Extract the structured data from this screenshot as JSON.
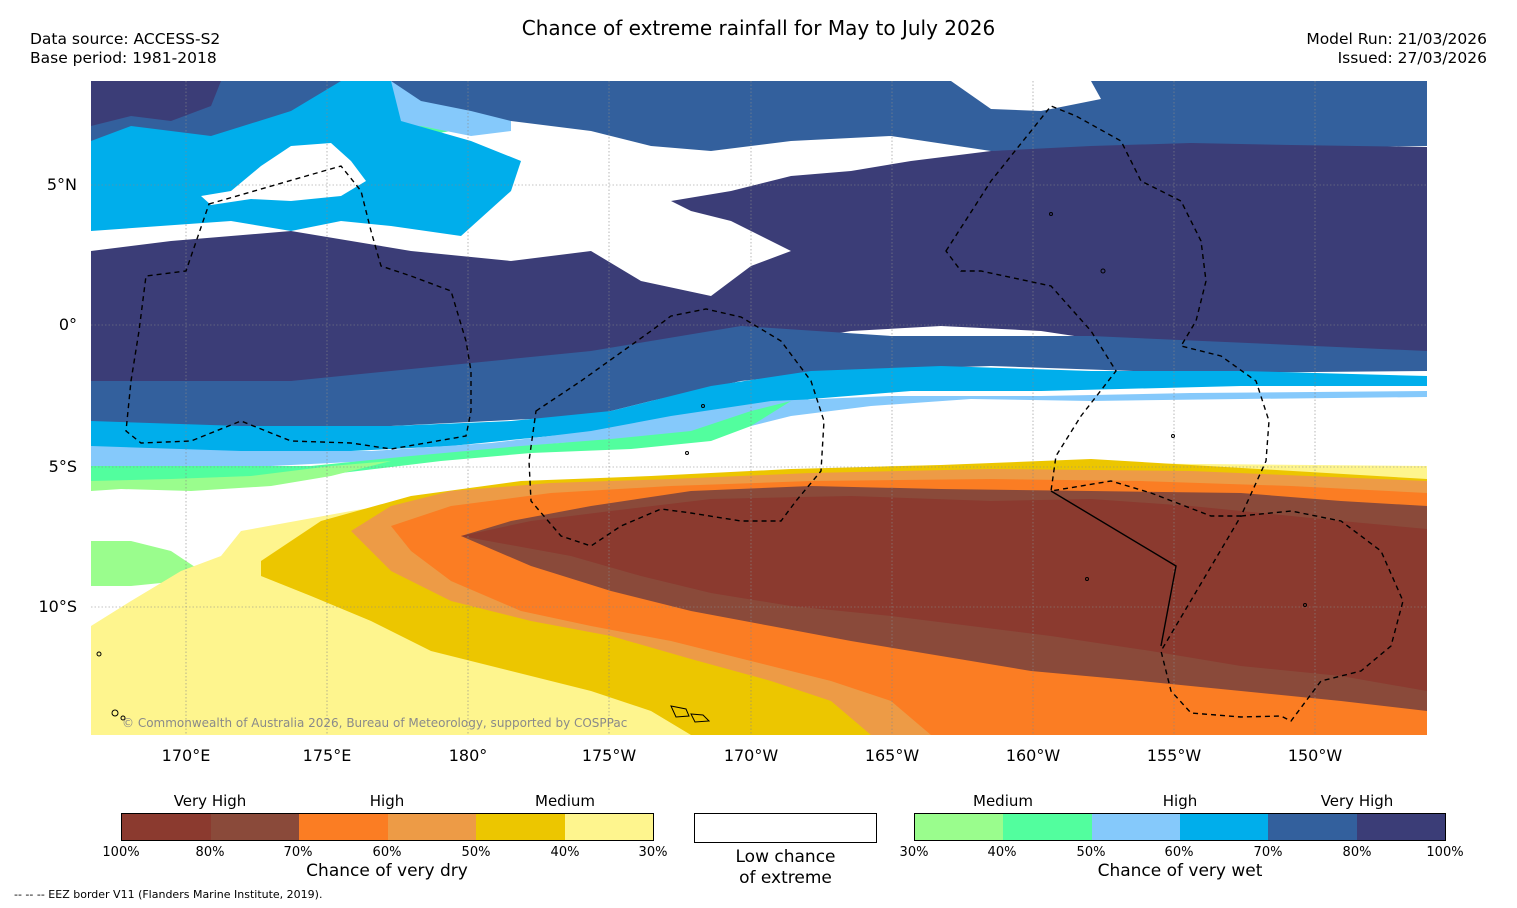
{
  "header": {
    "title": "Chance of extreme rainfall for May to July 2026",
    "data_source": "Data source: ACCESS-S2",
    "base_period": "Base period: 1981-2018",
    "model_run": "Model Run: 21/03/2026",
    "issued": "Issued: 27/03/2026"
  },
  "map": {
    "lat_labels": [
      "5°N",
      "0°",
      "5°S",
      "10°S"
    ],
    "lon_labels": [
      "170°E",
      "175°E",
      "180°",
      "175°W",
      "170°W",
      "165°W",
      "160°W",
      "155°W",
      "150°W"
    ],
    "copyright": "© Commonwealth of Australia 2026, Bureau of Meteorology, supported by COSPPac"
  },
  "legend": {
    "dry": {
      "title": "Chance of very dry",
      "categories": [
        "Very High",
        "High",
        "Medium"
      ],
      "ticks": [
        "100%",
        "80%",
        "70%",
        "60%",
        "50%",
        "40%",
        "30%"
      ],
      "colors": [
        "#8b3a2f",
        "#8a4a3a",
        "#fb7d23",
        "#ed9b46",
        "#ecc600",
        "#fef58e"
      ]
    },
    "neutral": {
      "label_line1": "Low chance",
      "label_line2": "of extreme",
      "color": "#ffffff"
    },
    "wet": {
      "title": "Chance of very wet",
      "categories": [
        "Medium",
        "High",
        "Very High"
      ],
      "ticks": [
        "30%",
        "40%",
        "50%",
        "60%",
        "70%",
        "80%",
        "100%"
      ],
      "colors": [
        "#9afd8d",
        "#52fe9e",
        "#85c9fb",
        "#00aeeb",
        "#33609d",
        "#3b3d77"
      ]
    }
  },
  "footnote": "--  --  -- EEZ border V11 (Flanders Marine Institute, 2019)."
}
